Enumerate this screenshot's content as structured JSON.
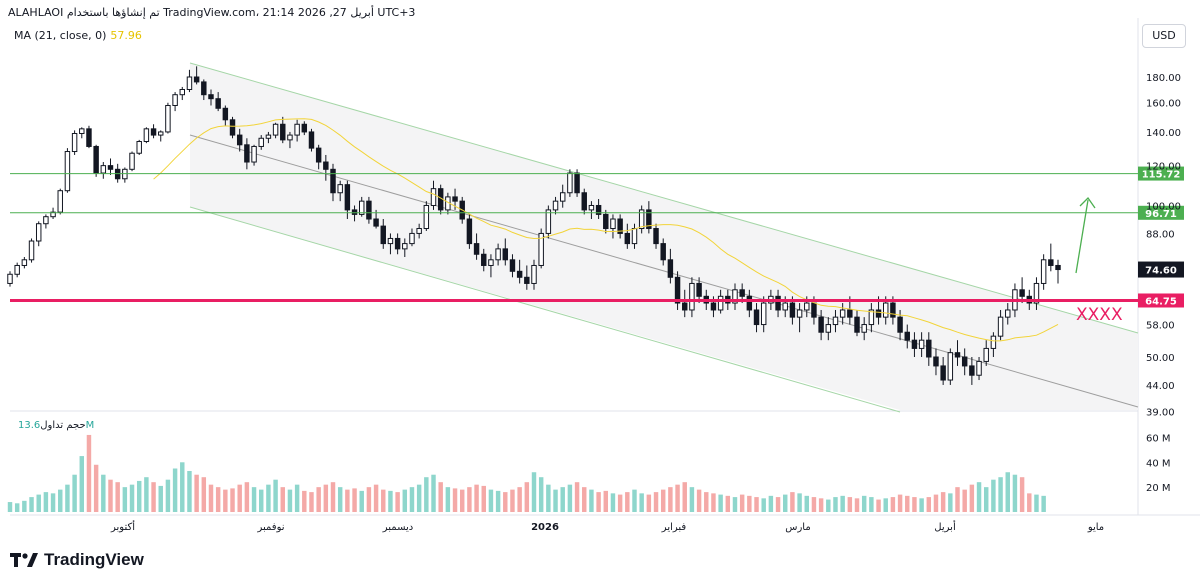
{
  "header": {
    "text": "ALAHLAOI تم إنشاؤها باستخدام TradingView.com، 21:14 2026 ,27 أبريل UTC+3"
  },
  "ma_legend": {
    "label": "MA (21, close, 0)",
    "value": "57.96",
    "color": "#f2d43a"
  },
  "currency": "USD",
  "volume_legend": {
    "label": "حجم تداول",
    "value": "13.6M"
  },
  "brand": {
    "name": "TradingView"
  },
  "annotation": {
    "text": "XXXX",
    "color": "#e91e63"
  },
  "colors": {
    "up": "#26a69a",
    "down": "#ef5350",
    "level_line": "#4caf50",
    "support": "#e91e63",
    "ma": "#f2d43a"
  },
  "chart_data": {
    "type": "candlestick",
    "y_axis": {
      "ticks": [
        "180.00",
        "160.00",
        "140.00",
        "120.00",
        "100.00",
        "88.00",
        "74.60",
        "64.75",
        "58.00",
        "50.00",
        "44.00",
        "39.00"
      ]
    },
    "x_axis": {
      "labels": [
        "أكتوبر",
        "نوفمبر",
        "ديسمبر",
        "2026",
        "فبراير",
        "مارس",
        "أبريل",
        "مايو"
      ]
    },
    "levels": [
      {
        "label": "115.72",
        "value": 115.72
      },
      {
        "label": "96.71",
        "value": 96.71
      }
    ],
    "support": {
      "label": "64.75",
      "value": 64.75
    },
    "last_price": {
      "label": "74.60",
      "value": 74.6
    },
    "volume_axis": {
      "ticks": [
        "60 M",
        "40 M",
        "20 M"
      ]
    },
    "candles": [
      [
        70,
        74,
        69,
        73
      ],
      [
        73,
        77,
        72,
        76
      ],
      [
        76,
        79,
        75,
        78
      ],
      [
        78,
        86,
        77,
        85
      ],
      [
        85,
        93,
        83,
        92
      ],
      [
        92,
        96,
        90,
        95
      ],
      [
        95,
        99,
        94,
        97
      ],
      [
        97,
        108,
        96,
        107
      ],
      [
        107,
        130,
        106,
        128
      ],
      [
        128,
        141,
        126,
        139
      ],
      [
        139,
        143,
        136,
        142
      ],
      [
        142,
        144,
        130,
        131
      ],
      [
        131,
        132,
        114,
        116
      ],
      [
        116,
        122,
        113,
        120
      ],
      [
        120,
        124,
        115,
        118
      ],
      [
        118,
        121,
        111,
        113
      ],
      [
        113,
        119,
        111,
        118
      ],
      [
        118,
        128,
        117,
        127
      ],
      [
        127,
        135,
        126,
        134
      ],
      [
        134,
        143,
        133,
        142
      ],
      [
        142,
        145,
        136,
        138
      ],
      [
        138,
        141,
        134,
        140
      ],
      [
        140,
        160,
        139,
        158
      ],
      [
        158,
        168,
        154,
        166
      ],
      [
        166,
        172,
        162,
        170
      ],
      [
        170,
        186,
        168,
        180
      ],
      [
        180,
        189,
        174,
        176
      ],
      [
        176,
        178,
        162,
        166
      ],
      [
        166,
        170,
        158,
        163
      ],
      [
        163,
        168,
        154,
        156
      ],
      [
        156,
        158,
        144,
        148
      ],
      [
        148,
        150,
        136,
        138
      ],
      [
        138,
        142,
        128,
        132
      ],
      [
        132,
        136,
        118,
        122
      ],
      [
        122,
        132,
        120,
        131
      ],
      [
        131,
        138,
        129,
        136
      ],
      [
        136,
        140,
        133,
        138
      ],
      [
        138,
        146,
        136,
        145
      ],
      [
        145,
        150,
        133,
        135
      ],
      [
        135,
        140,
        130,
        138
      ],
      [
        138,
        148,
        134,
        145
      ],
      [
        145,
        147,
        138,
        140
      ],
      [
        140,
        142,
        128,
        130
      ],
      [
        130,
        132,
        118,
        122
      ],
      [
        122,
        126,
        112,
        118
      ],
      [
        118,
        121,
        102,
        106
      ],
      [
        106,
        112,
        102,
        110
      ],
      [
        110,
        112,
        94,
        98
      ],
      [
        98,
        100,
        93,
        96
      ],
      [
        96,
        104,
        95,
        102
      ],
      [
        102,
        104,
        92,
        94
      ],
      [
        94,
        98,
        90,
        91
      ],
      [
        91,
        94,
        82,
        84
      ],
      [
        84,
        88,
        80,
        86
      ],
      [
        86,
        88,
        80,
        82
      ],
      [
        82,
        86,
        79,
        84
      ],
      [
        84,
        90,
        83,
        88
      ],
      [
        88,
        92,
        86,
        90
      ],
      [
        90,
        102,
        89,
        100
      ],
      [
        100,
        112,
        98,
        108
      ],
      [
        108,
        110,
        96,
        98
      ],
      [
        98,
        106,
        96,
        104
      ],
      [
        104,
        108,
        98,
        102
      ],
      [
        102,
        104,
        92,
        94
      ],
      [
        94,
        96,
        82,
        84
      ],
      [
        84,
        88,
        78,
        80
      ],
      [
        80,
        82,
        74,
        76
      ],
      [
        76,
        80,
        72,
        78
      ],
      [
        78,
        84,
        76,
        82
      ],
      [
        82,
        86,
        76,
        78
      ],
      [
        78,
        80,
        72,
        74
      ],
      [
        74,
        78,
        70,
        72
      ],
      [
        72,
        76,
        68,
        70
      ],
      [
        70,
        78,
        68,
        76
      ],
      [
        76,
        90,
        75,
        88
      ],
      [
        88,
        100,
        86,
        98
      ],
      [
        98,
        104,
        96,
        102
      ],
      [
        102,
        110,
        99,
        106
      ],
      [
        106,
        118,
        104,
        116
      ],
      [
        116,
        118,
        104,
        106
      ],
      [
        106,
        108,
        96,
        98
      ],
      [
        98,
        102,
        94,
        100
      ],
      [
        100,
        103,
        94,
        96
      ],
      [
        96,
        98,
        88,
        90
      ],
      [
        90,
        96,
        86,
        94
      ],
      [
        94,
        96,
        86,
        88
      ],
      [
        88,
        92,
        82,
        84
      ],
      [
        84,
        92,
        82,
        90
      ],
      [
        90,
        100,
        88,
        98
      ],
      [
        98,
        102,
        88,
        90
      ],
      [
        90,
        92,
        82,
        84
      ],
      [
        84,
        86,
        76,
        78
      ],
      [
        78,
        82,
        70,
        72
      ],
      [
        72,
        74,
        62,
        64
      ],
      [
        64,
        68,
        60,
        62
      ],
      [
        62,
        72,
        60,
        70
      ],
      [
        70,
        72,
        64,
        66
      ],
      [
        66,
        68,
        62,
        64
      ],
      [
        64,
        66,
        60,
        62
      ],
      [
        62,
        68,
        61,
        66
      ],
      [
        66,
        68,
        62,
        64
      ],
      [
        64,
        70,
        62,
        68
      ],
      [
        68,
        70,
        64,
        66
      ],
      [
        66,
        68,
        60,
        62
      ],
      [
        62,
        64,
        56,
        58
      ],
      [
        58,
        66,
        56,
        64
      ],
      [
        64,
        68,
        62,
        66
      ],
      [
        66,
        68,
        60,
        62
      ],
      [
        62,
        66,
        60,
        64
      ],
      [
        64,
        66,
        58,
        60
      ],
      [
        60,
        64,
        56,
        62
      ],
      [
        62,
        66,
        60,
        64
      ],
      [
        64,
        66,
        58,
        60
      ],
      [
        60,
        62,
        54,
        56
      ],
      [
        56,
        60,
        54,
        58
      ],
      [
        58,
        62,
        56,
        60
      ],
      [
        60,
        64,
        58,
        62
      ],
      [
        62,
        66,
        58,
        60
      ],
      [
        60,
        62,
        55,
        56
      ],
      [
        56,
        60,
        54,
        58
      ],
      [
        58,
        64,
        56,
        62
      ],
      [
        62,
        66,
        58,
        60
      ],
      [
        60,
        66,
        58,
        64
      ],
      [
        64,
        66,
        58,
        60
      ],
      [
        60,
        62,
        54,
        56
      ],
      [
        56,
        58,
        52,
        54
      ],
      [
        54,
        56,
        50,
        52
      ],
      [
        52,
        56,
        50,
        54
      ],
      [
        54,
        56,
        48,
        50
      ],
      [
        50,
        52,
        46,
        48
      ],
      [
        48,
        50,
        44,
        45
      ],
      [
        45,
        52,
        44,
        51
      ],
      [
        51,
        54,
        48,
        50
      ],
      [
        50,
        52,
        46,
        48
      ],
      [
        48,
        50,
        44,
        46
      ],
      [
        46,
        50,
        45,
        49
      ],
      [
        49,
        54,
        48,
        52
      ],
      [
        52,
        56,
        50,
        55
      ],
      [
        55,
        62,
        54,
        60
      ],
      [
        60,
        64,
        58,
        62
      ],
      [
        62,
        70,
        60,
        68
      ],
      [
        68,
        72,
        64,
        66
      ],
      [
        66,
        68,
        62,
        64
      ],
      [
        64,
        72,
        62,
        70
      ],
      [
        70,
        80,
        68,
        78
      ],
      [
        78,
        84,
        74,
        76
      ],
      [
        76,
        78,
        70,
        74.6
      ]
    ],
    "volume": [
      8,
      7,
      9,
      12,
      14,
      16,
      15,
      18,
      22,
      30,
      45,
      62,
      38,
      30,
      26,
      24,
      20,
      22,
      25,
      28,
      24,
      21,
      26,
      35,
      40,
      33,
      30,
      28,
      22,
      20,
      18,
      19,
      22,
      24,
      20,
      18,
      22,
      26,
      20,
      18,
      22,
      17,
      16,
      20,
      22,
      24,
      20,
      18,
      19,
      17,
      20,
      22,
      18,
      17,
      16,
      18,
      20,
      22,
      28,
      30,
      24,
      20,
      19,
      18,
      20,
      22,
      21,
      18,
      17,
      16,
      18,
      20,
      24,
      32,
      28,
      22,
      18,
      20,
      22,
      24,
      20,
      18,
      16,
      17,
      15,
      14,
      16,
      18,
      15,
      14,
      16,
      18,
      20,
      22,
      24,
      20,
      18,
      16,
      15,
      14,
      13,
      12,
      14,
      13,
      12,
      11,
      13,
      12,
      14,
      16,
      15,
      13,
      12,
      11,
      10,
      12,
      13,
      12,
      11,
      13,
      12,
      10,
      11,
      12,
      14,
      13,
      12,
      11,
      12,
      14,
      16,
      15,
      20,
      18,
      22,
      24,
      20,
      26,
      28,
      32,
      30,
      28,
      15,
      14,
      13
    ]
  }
}
